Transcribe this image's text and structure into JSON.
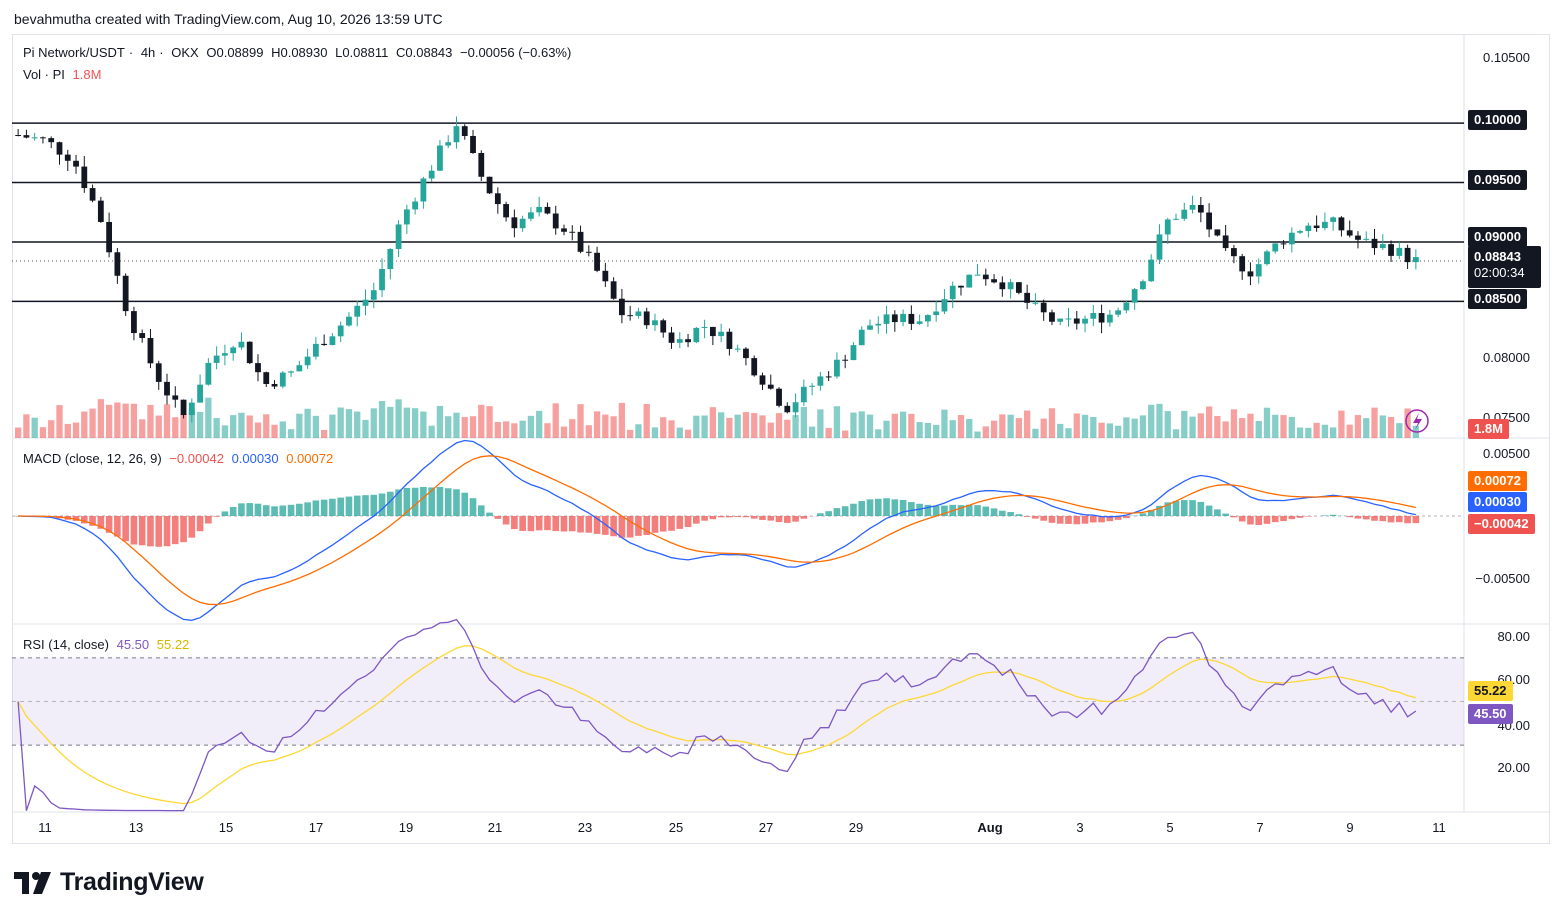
{
  "header": {
    "credit": "bevahmutha created with TradingView.com, Aug 10, 2026 13:59 UTC"
  },
  "legend": {
    "symbol": "Pi Network/USDT",
    "interval": "4h",
    "exchange": "OKX",
    "open": "O0.08899",
    "high": "H0.08930",
    "low": "L0.08811",
    "close": "C0.08843",
    "change": "−0.00056 (−0.63%)",
    "volume_label": "Vol · PI",
    "volume_value": "1.8M"
  },
  "price_axis": {
    "labels": [
      "0.10500",
      "0.10000",
      "0.09500",
      "0.09000",
      "0.08500",
      "0.08000",
      "0.07500"
    ],
    "current_price": "0.08843",
    "countdown": "02:00:34",
    "volume_tag": "1.8M"
  },
  "macd": {
    "legend_title": "MACD (close, 12, 26, 9)",
    "hist": "−0.00042",
    "macd": "0.00030",
    "signal": "0.00072",
    "axis_labels": [
      "0.00500",
      "−0.00500"
    ],
    "tags": {
      "signal": "0.00072",
      "macd": "0.00030",
      "hist": "−0.00042"
    }
  },
  "rsi": {
    "legend_title": "RSI (14, close)",
    "rsi": "45.50",
    "ma": "55.22",
    "axis_labels": [
      "80.00",
      "60.00",
      "40.00",
      "20.00"
    ],
    "tags": {
      "ma": "55.22",
      "rsi": "45.50"
    }
  },
  "time_axis": [
    "11",
    "13",
    "15",
    "17",
    "19",
    "21",
    "23",
    "25",
    "27",
    "29",
    "Aug",
    "3",
    "5",
    "7",
    "9",
    "11"
  ],
  "brand": {
    "name": "TradingView"
  },
  "colors": {
    "up": "#26a69a",
    "down": "#ef5350",
    "macd": "#2962ff",
    "signal": "#ff6d00",
    "rsi": "#7e57c2",
    "rsi_ma": "#fdd835",
    "line": "#131722"
  },
  "chart_data": {
    "type": "candlestick",
    "interval": "4h",
    "horizontal_levels": [
      0.1,
      0.095,
      0.09,
      0.085
    ],
    "ylim": [
      0.0735,
      0.1075
    ],
    "close_path": [
      {
        "x": "Jul 10",
        "y": 0.099
      },
      {
        "x": "Jul 11",
        "y": 0.0985
      },
      {
        "x": "Jul 12",
        "y": 0.097
      },
      {
        "x": "Jul 13",
        "y": 0.092
      },
      {
        "x": "Jul 13",
        "y": 0.084
      },
      {
        "x": "Jul 14",
        "y": 0.079
      },
      {
        "x": "Jul 14",
        "y": 0.0752
      },
      {
        "x": "Jul 15",
        "y": 0.08
      },
      {
        "x": "Jul 15",
        "y": 0.082
      },
      {
        "x": "Jul 16",
        "y": 0.078
      },
      {
        "x": "Jul 17",
        "y": 0.079
      },
      {
        "x": "Jul 17",
        "y": 0.0815
      },
      {
        "x": "Jul 18",
        "y": 0.0835
      },
      {
        "x": "Jul 19",
        "y": 0.086
      },
      {
        "x": "Jul 19",
        "y": 0.092
      },
      {
        "x": "Jul 20",
        "y": 0.096
      },
      {
        "x": "Jul 20",
        "y": 0.1
      },
      {
        "x": "Jul 21",
        "y": 0.095
      },
      {
        "x": "Jul 21",
        "y": 0.0915
      },
      {
        "x": "Jul 22",
        "y": 0.0925
      },
      {
        "x": "Jul 23",
        "y": 0.091
      },
      {
        "x": "Jul 23",
        "y": 0.088
      },
      {
        "x": "Jul 24",
        "y": 0.084
      },
      {
        "x": "Jul 25",
        "y": 0.0835
      },
      {
        "x": "Jul 25",
        "y": 0.0815
      },
      {
        "x": "Jul 26",
        "y": 0.083
      },
      {
        "x": "Jul 27",
        "y": 0.0815
      },
      {
        "x": "Jul 27",
        "y": 0.079
      },
      {
        "x": "Jul 28",
        "y": 0.076
      },
      {
        "x": "Jul 28",
        "y": 0.078
      },
      {
        "x": "Jul 29",
        "y": 0.08
      },
      {
        "x": "Jul 30",
        "y": 0.083
      },
      {
        "x": "Jul 30",
        "y": 0.0835
      },
      {
        "x": "Jul 31",
        "y": 0.0835
      },
      {
        "x": "Aug 1",
        "y": 0.086
      },
      {
        "x": "Aug 1",
        "y": 0.0875
      },
      {
        "x": "Aug 2",
        "y": 0.0865
      },
      {
        "x": "Aug 3",
        "y": 0.0845
      },
      {
        "x": "Aug 3",
        "y": 0.083
      },
      {
        "x": "Aug 4",
        "y": 0.0835
      },
      {
        "x": "Aug 5",
        "y": 0.084
      },
      {
        "x": "Aug 5",
        "y": 0.087
      },
      {
        "x": "Aug 6",
        "y": 0.092
      },
      {
        "x": "Aug 6",
        "y": 0.093
      },
      {
        "x": "Aug 7",
        "y": 0.089
      },
      {
        "x": "Aug 7",
        "y": 0.0875
      },
      {
        "x": "Aug 8",
        "y": 0.09
      },
      {
        "x": "Aug 8",
        "y": 0.0915
      },
      {
        "x": "Aug 9",
        "y": 0.0915
      },
      {
        "x": "Aug 9",
        "y": 0.09
      },
      {
        "x": "Aug 10",
        "y": 0.0895
      },
      {
        "x": "Aug 10",
        "y": 0.0884
      }
    ]
  }
}
